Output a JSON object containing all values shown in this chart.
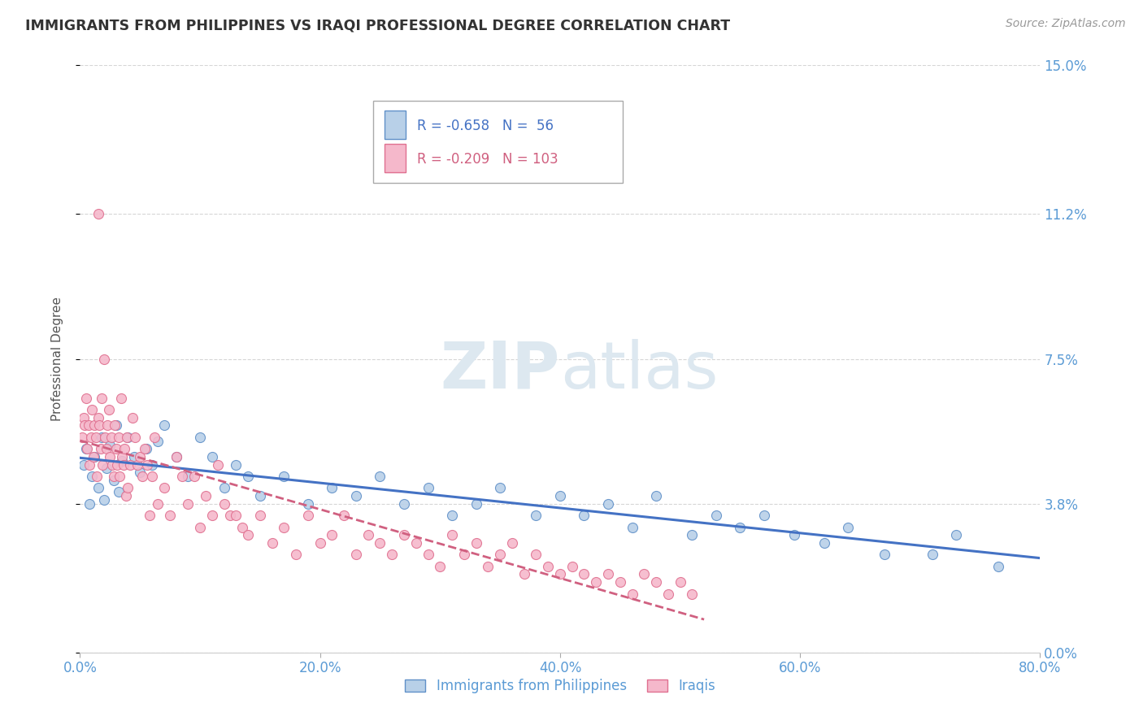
{
  "title": "IMMIGRANTS FROM PHILIPPINES VS IRAQI PROFESSIONAL DEGREE CORRELATION CHART",
  "source": "Source: ZipAtlas.com",
  "ylabel": "Professional Degree",
  "xlim": [
    0.0,
    80.0
  ],
  "ylim": [
    0.0,
    15.0
  ],
  "xticks": [
    0.0,
    20.0,
    40.0,
    60.0,
    80.0
  ],
  "yticks": [
    0.0,
    3.8,
    7.5,
    11.2,
    15.0
  ],
  "blue_label": "Immigrants from Philippines",
  "pink_label": "Iraqis",
  "blue_R": -0.658,
  "blue_N": 56,
  "pink_R": -0.209,
  "pink_N": 103,
  "blue_color": "#b8d0e8",
  "pink_color": "#f5b8cb",
  "blue_edge_color": "#6090c8",
  "pink_edge_color": "#e07090",
  "blue_line_color": "#4472c4",
  "pink_line_color": "#d06080",
  "background_color": "#ffffff",
  "grid_color": "#cccccc",
  "tick_color": "#5b9bd5",
  "title_color": "#333333",
  "watermark_color": "#dde8f0",
  "blue_x": [
    0.3,
    0.5,
    0.8,
    1.0,
    1.2,
    1.5,
    1.8,
    2.0,
    2.2,
    2.5,
    2.8,
    3.0,
    3.2,
    3.5,
    4.0,
    4.5,
    5.0,
    5.5,
    6.0,
    6.5,
    7.0,
    8.0,
    9.0,
    10.0,
    11.0,
    12.0,
    13.0,
    14.0,
    15.0,
    17.0,
    19.0,
    21.0,
    23.0,
    25.0,
    27.0,
    29.0,
    31.0,
    33.0,
    35.0,
    38.0,
    40.0,
    42.0,
    44.0,
    46.0,
    48.0,
    51.0,
    53.0,
    55.0,
    57.0,
    59.5,
    62.0,
    64.0,
    67.0,
    71.0,
    73.0,
    76.5
  ],
  "blue_y": [
    4.8,
    5.2,
    3.8,
    4.5,
    5.0,
    4.2,
    5.5,
    3.9,
    4.7,
    5.3,
    4.4,
    5.8,
    4.1,
    4.9,
    5.5,
    5.0,
    4.6,
    5.2,
    4.8,
    5.4,
    5.8,
    5.0,
    4.5,
    5.5,
    5.0,
    4.2,
    4.8,
    4.5,
    4.0,
    4.5,
    3.8,
    4.2,
    4.0,
    4.5,
    3.8,
    4.2,
    3.5,
    3.8,
    4.2,
    3.5,
    4.0,
    3.5,
    3.8,
    3.2,
    4.0,
    3.0,
    3.5,
    3.2,
    3.5,
    3.0,
    2.8,
    3.2,
    2.5,
    2.5,
    3.0,
    2.2
  ],
  "pink_x": [
    0.2,
    0.3,
    0.4,
    0.5,
    0.6,
    0.7,
    0.8,
    0.9,
    1.0,
    1.1,
    1.2,
    1.3,
    1.4,
    1.5,
    1.6,
    1.7,
    1.8,
    1.9,
    2.0,
    2.1,
    2.2,
    2.3,
    2.4,
    2.5,
    2.6,
    2.7,
    2.8,
    2.9,
    3.0,
    3.1,
    3.2,
    3.3,
    3.4,
    3.5,
    3.6,
    3.7,
    3.8,
    3.9,
    4.0,
    4.2,
    4.4,
    4.6,
    4.8,
    5.0,
    5.2,
    5.4,
    5.6,
    5.8,
    6.0,
    6.2,
    6.5,
    7.0,
    7.5,
    8.0,
    8.5,
    9.0,
    9.5,
    10.0,
    10.5,
    11.0,
    11.5,
    12.0,
    12.5,
    13.0,
    13.5,
    14.0,
    15.0,
    16.0,
    17.0,
    18.0,
    19.0,
    20.0,
    21.0,
    22.0,
    23.0,
    24.0,
    25.0,
    26.0,
    27.0,
    28.0,
    29.0,
    30.0,
    31.0,
    32.0,
    33.0,
    34.0,
    35.0,
    36.0,
    37.0,
    38.0,
    39.0,
    40.0,
    41.0,
    42.0,
    43.0,
    44.0,
    45.0,
    46.0,
    47.0,
    48.0,
    49.0,
    50.0,
    51.0
  ],
  "pink_y": [
    5.5,
    6.0,
    5.8,
    6.5,
    5.2,
    5.8,
    4.8,
    5.5,
    6.2,
    5.0,
    5.8,
    5.5,
    4.5,
    6.0,
    5.8,
    5.2,
    6.5,
    4.8,
    7.5,
    5.5,
    5.2,
    5.8,
    6.2,
    5.0,
    5.5,
    4.8,
    4.5,
    5.8,
    5.2,
    4.8,
    5.5,
    4.5,
    6.5,
    5.0,
    4.8,
    5.2,
    4.0,
    5.5,
    4.2,
    4.8,
    6.0,
    5.5,
    4.8,
    5.0,
    4.5,
    5.2,
    4.8,
    3.5,
    4.5,
    5.5,
    3.8,
    4.2,
    3.5,
    5.0,
    4.5,
    3.8,
    4.5,
    3.2,
    4.0,
    3.5,
    4.8,
    3.8,
    3.5,
    3.5,
    3.2,
    3.0,
    3.5,
    2.8,
    3.2,
    2.5,
    3.5,
    2.8,
    3.0,
    3.5,
    2.5,
    3.0,
    2.8,
    2.5,
    3.0,
    2.8,
    2.5,
    2.2,
    3.0,
    2.5,
    2.8,
    2.2,
    2.5,
    2.8,
    2.0,
    2.5,
    2.2,
    2.0,
    2.2,
    2.0,
    1.8,
    2.0,
    1.8,
    1.5,
    2.0,
    1.8,
    1.5,
    1.8,
    1.5
  ],
  "pink_outlier_x": [
    1.5
  ],
  "pink_outlier_y": [
    11.2
  ],
  "blue_trend_x0": 0.0,
  "blue_trend_x1": 80.0,
  "pink_trend_x0": 0.0,
  "pink_trend_x1": 52.0
}
